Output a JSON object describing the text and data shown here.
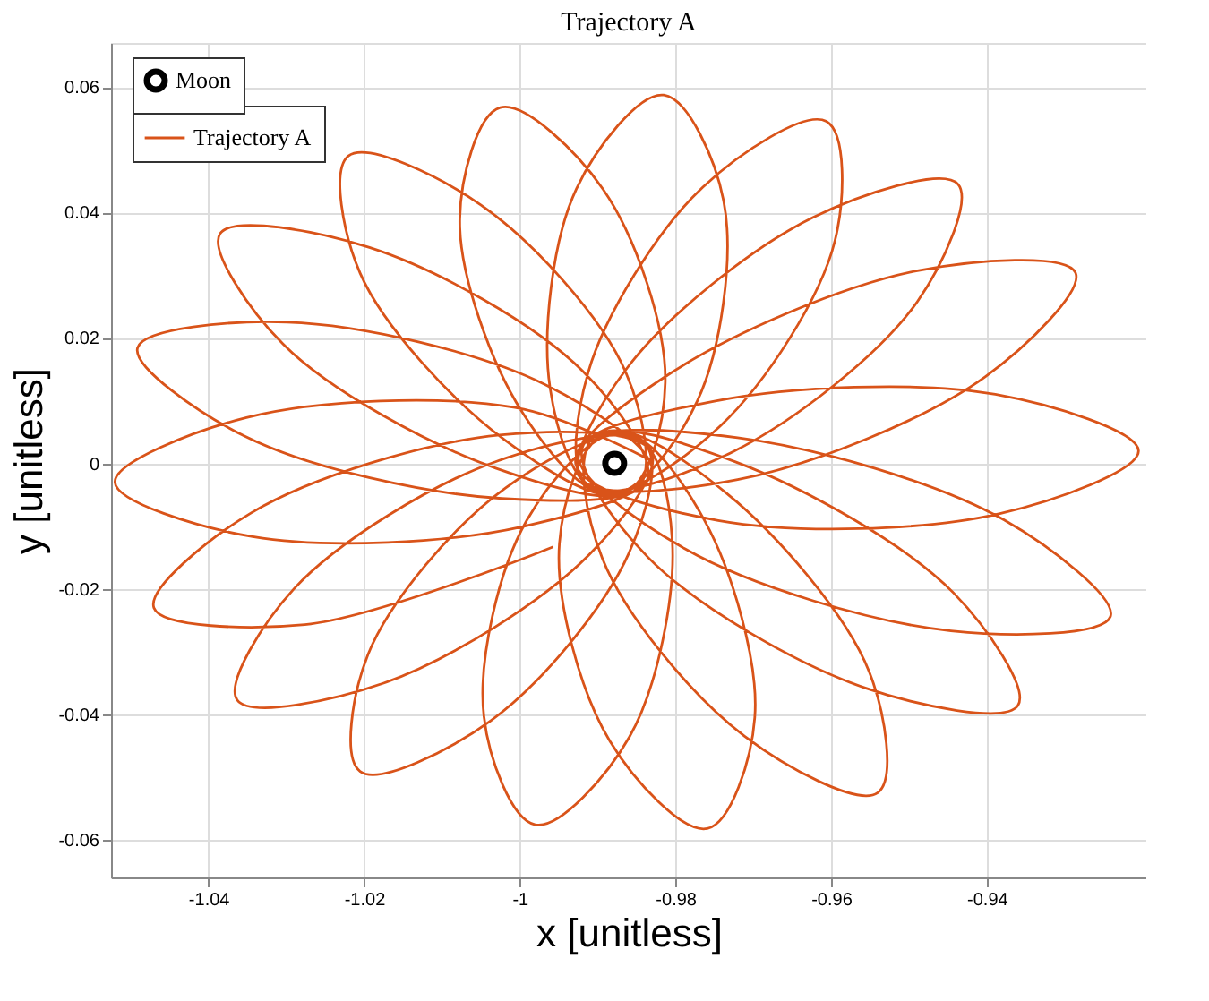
{
  "chart_data": {
    "type": "line",
    "title": "Trajectory A",
    "xlabel": "x [unitless]",
    "ylabel": "y [unitless]",
    "xlim": [
      -1.0525,
      -0.9195
    ],
    "ylim": [
      -0.066,
      0.067
    ],
    "xticks": [
      -1.04,
      -1.02,
      -1,
      -0.98,
      -0.96,
      -0.94
    ],
    "yticks": [
      -0.06,
      -0.04,
      -0.02,
      0,
      0.02,
      0.04,
      0.06
    ],
    "grid": true,
    "legend": "top left",
    "series": [
      {
        "name": "Moon",
        "type": "scatter",
        "marker": "circle",
        "color": "#000000",
        "x": [
          -0.9878
        ],
        "values": [
          0
        ]
      },
      {
        "name": "Trajectory A",
        "color": "#d95319",
        "x": [
          -0.9828,
          -1.0006,
          -1.0351,
          -1.052,
          -1.0343,
          -0.9997,
          -0.983,
          -0.9968,
          -1.0299,
          -1.0491,
          -1.0353,
          -1.0023,
          -0.9837,
          -0.9919,
          -1.0193,
          -1.0385,
          -1.0304,
          -1.003,
          -0.9849,
          -0.9864,
          -1.005,
          -1.022,
          -1.0205,
          -1.002,
          -0.9866,
          -0.9813,
          -0.9893,
          -1.0025,
          -1.0077,
          -0.9997,
          -0.9883,
          -0.9772,
          -0.9738,
          -0.9815,
          -0.9927,
          -0.9961,
          -0.99,
          -0.9742,
          -0.9595,
          -0.9606,
          -0.9765,
          -0.9912,
          -0.9913,
          -0.9727,
          -0.9489,
          -0.9437,
          -0.9623,
          -0.9862,
          -0.9922,
          -0.972,
          -0.9402,
          -0.9286,
          -0.9489,
          -0.9807,
          -0.9928,
          -0.9745,
          -0.9383,
          -0.9205,
          -0.9389,
          -0.975,
          -0.9925,
          -0.9788,
          -0.9446,
          -0.9241,
          -0.9378,
          -0.972,
          -0.9918,
          -0.9835,
          -0.9556,
          -0.936,
          -0.9443,
          -0.9722,
          -0.9905,
          -0.9894,
          -0.9711,
          -0.954,
          -0.9551,
          -0.9734,
          -0.9888,
          -0.9949,
          -0.9884,
          -0.9759,
          -0.9698,
          -0.9763,
          -0.9869,
          -0.9991,
          -1.0046,
          -0.998,
          -0.9859,
          -0.9804,
          -0.985,
          -1.0018,
          -1.0195,
          -1.0205,
          -1.0037,
          -0.986,
          -0.9839,
          -1.0028,
          -1.029,
          -1.0363,
          -1.0174,
          -0.9911,
          -0.9831,
          -1.0026,
          -1.0345,
          -1.047,
          -1.0276,
          -0.9957
        ],
        "values": [
          0.0002,
          0.0089,
          0.0073,
          -0.003,
          -0.0117,
          -0.0101,
          -0.0014,
          0.0126,
          0.0225,
          0.0184,
          0.0043,
          -0.0056,
          -0.0029,
          0.0147,
          0.0344,
          0.0366,
          0.019,
          -0.0008,
          -0.0041,
          0.0146,
          0.0412,
          0.049,
          0.0303,
          0.0038,
          -0.0048,
          0.0129,
          0.0437,
          0.0567,
          0.0389,
          0.0082,
          -0.005,
          0.0099,
          0.0418,
          0.0587,
          0.0438,
          0.012,
          -0.0045,
          0.006,
          0.0355,
          0.0545,
          0.044,
          0.0145,
          -0.0035,
          0.0018,
          0.0258,
          0.0445,
          0.0392,
          0.0152,
          -0.0023,
          -0.0026,
          0.0138,
          0.0304,
          0.0307,
          0.0143,
          -0.0001,
          -0.0091,
          -0.008,
          0.002,
          0.011,
          0.0099,
          0.0018,
          -0.0136,
          -0.0267,
          -0.0244,
          -0.009,
          0.0041,
          0.003,
          -0.015,
          -0.0358,
          -0.0386,
          -0.0206,
          0.0002,
          0.0042,
          -0.0151,
          -0.0435,
          -0.0525,
          -0.0332,
          -0.0048,
          0.0049,
          -0.0128,
          -0.0443,
          -0.0582,
          -0.0405,
          -0.009,
          0.0049,
          -0.0091,
          -0.0403,
          -0.0576,
          -0.0436,
          -0.0124,
          0.0042,
          -0.0039,
          -0.0305,
          -0.0491,
          -0.041,
          -0.0144,
          0.0031,
          0.0004,
          -0.02,
          -0.0377,
          -0.035,
          -0.0146,
          0.0018,
          0.0045,
          -0.0079,
          -0.023,
          -0.0257,
          -0.0133
        ]
      }
    ]
  }
}
